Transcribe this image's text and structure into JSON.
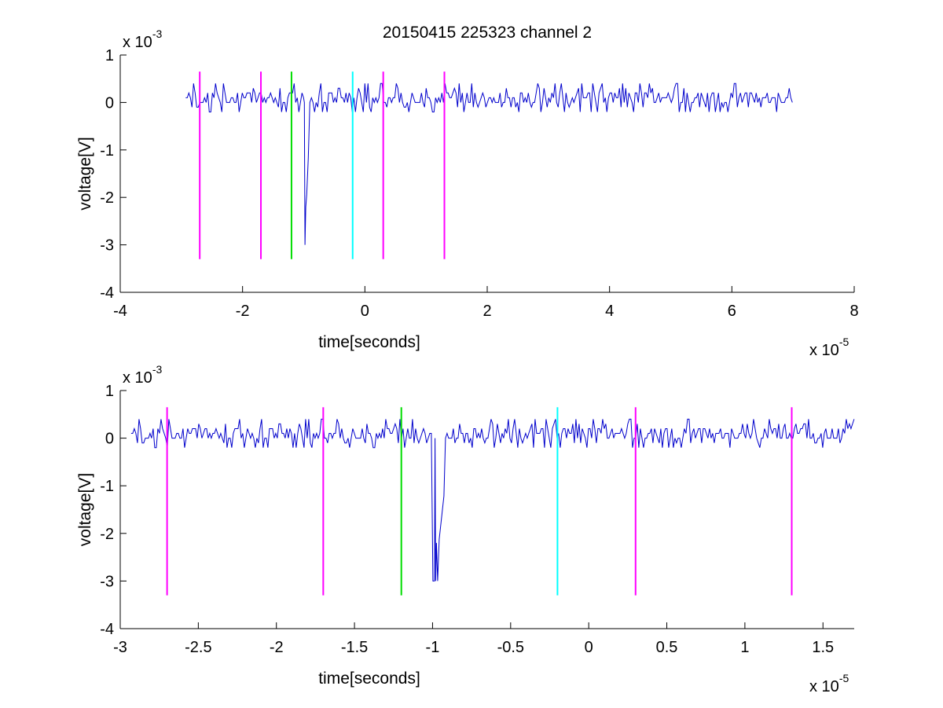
{
  "chart_data": [
    {
      "type": "line",
      "title": "20150415 225323 channel 2",
      "xlabel": "time[seconds]",
      "ylabel": "voltage[V]",
      "x_multiplier": "x 10",
      "x_exponent": "-5",
      "y_multiplier": "x 10",
      "y_exponent": "-3",
      "xlim": [
        -4,
        8
      ],
      "ylim": [
        -4,
        1
      ],
      "x_ticks": [
        -4,
        -2,
        0,
        2,
        4,
        6,
        8
      ],
      "x_tick_labels": [
        "-4",
        "-2",
        "0",
        "2",
        "4",
        "6",
        "8"
      ],
      "y_ticks": [
        1,
        0,
        -1,
        -2,
        -3,
        -4
      ],
      "y_tick_labels": [
        "1",
        "0",
        "-1",
        "-2",
        "-3",
        "-4"
      ],
      "grid": false,
      "signal": {
        "color": "#0000cc",
        "x_range": [
          -2.93,
          7.0
        ],
        "baseline": 0.1,
        "noise_amplitude": 0.3,
        "spike": {
          "x": -0.98,
          "min": -3.0
        }
      },
      "markers": [
        {
          "x": -2.7,
          "color": "#ff00ff",
          "y_range": [
            -3.3,
            0.65
          ]
        },
        {
          "x": -1.7,
          "color": "#ff00ff",
          "y_range": [
            -3.3,
            0.65
          ]
        },
        {
          "x": -1.2,
          "color": "#00dd00",
          "y_range": [
            -3.3,
            0.65
          ]
        },
        {
          "x": -0.2,
          "color": "#00ffff",
          "y_range": [
            -3.3,
            0.65
          ]
        },
        {
          "x": 0.3,
          "color": "#ff00ff",
          "y_range": [
            -3.3,
            0.65
          ]
        },
        {
          "x": 1.3,
          "color": "#ff00ff",
          "y_range": [
            -3.3,
            0.65
          ]
        }
      ]
    },
    {
      "type": "line",
      "title": "",
      "xlabel": "time[seconds]",
      "ylabel": "voltage[V]",
      "x_multiplier": "x 10",
      "x_exponent": "-5",
      "y_multiplier": "x 10",
      "y_exponent": "-3",
      "xlim": [
        -3.0,
        1.7
      ],
      "ylim": [
        -4,
        1
      ],
      "x_ticks": [
        -3,
        -2.5,
        -2,
        -1.5,
        -1,
        -0.5,
        0,
        0.5,
        1,
        1.5
      ],
      "x_tick_labels": [
        "-3",
        "-2.5",
        "-2",
        "-1.5",
        "-1",
        "-0.5",
        "0",
        "0.5",
        "1",
        "1.5"
      ],
      "y_ticks": [
        1,
        0,
        -1,
        -2,
        -3,
        -4
      ],
      "y_tick_labels": [
        "1",
        "0",
        "-1",
        "-2",
        "-3",
        "-4"
      ],
      "grid": false,
      "signal": {
        "color": "#0000cc",
        "x_range": [
          -2.93,
          1.7
        ],
        "baseline": 0.1,
        "noise_amplitude": 0.3,
        "spike": {
          "x": -0.98,
          "min": -3.0
        }
      },
      "markers": [
        {
          "x": -2.7,
          "color": "#ff00ff",
          "y_range": [
            -3.3,
            0.65
          ]
        },
        {
          "x": -1.7,
          "color": "#ff00ff",
          "y_range": [
            -3.3,
            0.65
          ]
        },
        {
          "x": -1.2,
          "color": "#00dd00",
          "y_range": [
            -3.3,
            0.65
          ]
        },
        {
          "x": -0.2,
          "color": "#00ffff",
          "y_range": [
            -3.3,
            0.65
          ]
        },
        {
          "x": 0.3,
          "color": "#ff00ff",
          "y_range": [
            -3.3,
            0.65
          ]
        },
        {
          "x": 1.3,
          "color": "#ff00ff",
          "y_range": [
            -3.3,
            0.65
          ]
        }
      ]
    }
  ]
}
